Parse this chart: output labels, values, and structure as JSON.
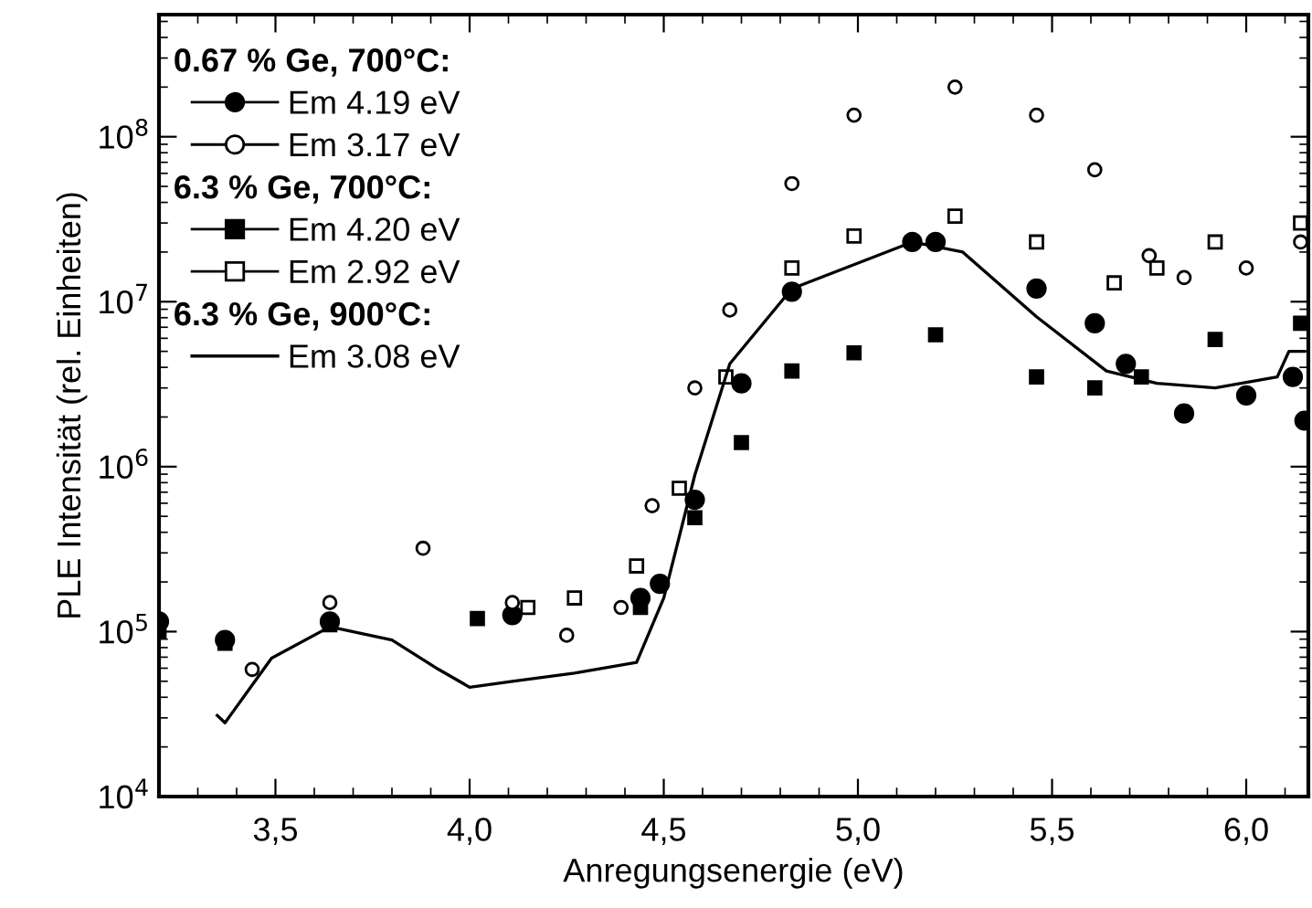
{
  "chart_data": {
    "type": "scatter",
    "xlabel": "Anregungsenergie (eV)",
    "ylabel": "PLE Intensität (rel. Einheiten)",
    "log": "y",
    "grid": false,
    "legend": "top left",
    "annotations": [
      "0.67 % Ge, 700°C:",
      "6.3 % Ge, 700°C:",
      "6.3 % Ge, 900°C:"
    ],
    "xlim": [
      3.2,
      6.16
    ],
    "ylim": [
      10000,
      550000000
    ],
    "xticks": [
      {
        "value": 3.5,
        "label": "3,5"
      },
      {
        "value": 4.0,
        "label": "4,0"
      },
      {
        "value": 4.5,
        "label": "4,5"
      },
      {
        "value": 5.0,
        "label": "5,0"
      },
      {
        "value": 5.5,
        "label": "5,5"
      },
      {
        "value": 6.0,
        "label": "6,0"
      }
    ],
    "yticks": [
      {
        "value": 10000,
        "label": "10$^{4}$"
      },
      {
        "value": 100000,
        "label": "10$^{5}$"
      },
      {
        "value": 1000000,
        "label": "10$^{6}$"
      },
      {
        "value": 10000000,
        "label": "10$^{7}$"
      },
      {
        "value": 100000000,
        "label": "10$^{8}$"
      }
    ],
    "series": [
      {
        "name": "Em 4.19 eV",
        "marker": "circle",
        "color": "#000000",
        "x": [
          3.2,
          3.37,
          3.64,
          4.11,
          4.44,
          4.49,
          4.58,
          4.7,
          4.83,
          5.14,
          5.2,
          5.46,
          5.61,
          5.69,
          5.84,
          6.0,
          6.12,
          6.15
        ],
        "values": [
          115000.0,
          89000.0,
          115000.0,
          126000.0,
          160000.0,
          195000.0,
          630000.0,
          3200000.0,
          11500000.0,
          23000000.0,
          23000000.0,
          12000000.0,
          7400000.0,
          4200000.0,
          2100000.0,
          2700000.0,
          3500000.0,
          1900000.0
        ]
      },
      {
        "name": "Em 3.17 eV",
        "marker": "circle",
        "color": "#000000",
        "x": [
          3.44,
          3.64,
          3.88,
          4.11,
          4.25,
          4.39,
          4.47,
          4.58,
          4.67,
          4.83,
          4.99,
          5.25,
          5.46,
          5.61,
          5.75,
          5.84,
          6.0,
          6.14
        ],
        "values": [
          59000.0,
          150000.0,
          320000.0,
          150000.0,
          95000.0,
          140000.0,
          580000.0,
          3000000.0,
          8900000.0,
          52000000.0,
          135000000.0,
          200000000.0,
          135000000.0,
          63000000.0,
          19000000.0,
          14000000.0,
          16000000.0,
          23000000.0
        ]
      },
      {
        "name": "Em 4.20 eV",
        "marker": "square",
        "color": "#000000",
        "x": [
          3.2,
          3.37,
          3.64,
          4.02,
          4.44,
          4.58,
          4.7,
          4.83,
          4.99,
          5.2,
          5.46,
          5.61,
          5.73,
          5.92,
          6.14
        ],
        "values": [
          100000.0,
          85000.0,
          110000.0,
          120000.0,
          140000.0,
          490000.0,
          1400000.0,
          3800000.0,
          4900000.0,
          6300000.0,
          3500000.0,
          3000000.0,
          3500000.0,
          5900000.0,
          7400000.0
        ]
      },
      {
        "name": "Em 2.92 eV",
        "marker": "square",
        "color": "#000000",
        "x": [
          4.15,
          4.27,
          4.43,
          4.54,
          4.66,
          4.83,
          4.99,
          5.25,
          5.46,
          5.66,
          5.77,
          5.92,
          6.14
        ],
        "values": [
          140000.0,
          160000.0,
          250000.0,
          740000.0,
          3500000.0,
          16000000.0,
          25000000.0,
          33000000.0,
          23000000.0,
          13000000.0,
          16000000.0,
          23000000.0,
          30000000.0
        ]
      },
      {
        "name": "Em 3.08 eV",
        "type": "line",
        "line_style": "solid",
        "color": "#000000",
        "x": [
          3.35,
          3.37,
          3.49,
          3.64,
          3.8,
          3.92,
          4.0,
          4.11,
          4.27,
          4.43,
          4.5,
          4.58,
          4.67,
          4.83,
          5.14,
          5.27,
          5.46,
          5.64,
          5.77,
          5.92,
          6.08,
          6.11,
          6.15
        ],
        "values": [
          31000.0,
          28000.0,
          69000.0,
          107000.0,
          89000.0,
          59000.0,
          46000.0,
          50000.0,
          56000.0,
          65000.0,
          160000.0,
          890000.0,
          4200000.0,
          12000000.0,
          23000000.0,
          20000000.0,
          8100000.0,
          3800000.0,
          3200000.0,
          3000000.0,
          3500000.0,
          5000000.0,
          5000000.0
        ]
      }
    ]
  }
}
